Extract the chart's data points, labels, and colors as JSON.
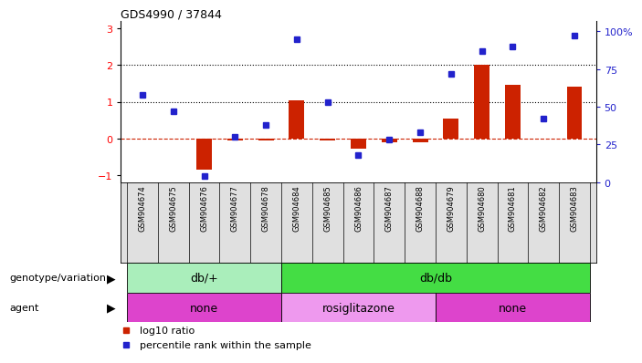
{
  "title": "GDS4990 / 37844",
  "samples": [
    "GSM904674",
    "GSM904675",
    "GSM904676",
    "GSM904677",
    "GSM904678",
    "GSM904684",
    "GSM904685",
    "GSM904686",
    "GSM904687",
    "GSM904688",
    "GSM904679",
    "GSM904680",
    "GSM904681",
    "GSM904682",
    "GSM904683"
  ],
  "log10_ratio": [
    0.0,
    -0.02,
    -0.85,
    -0.07,
    -0.05,
    1.05,
    -0.05,
    -0.28,
    -0.12,
    -0.12,
    0.55,
    2.02,
    1.45,
    -0.02,
    1.42
  ],
  "percentile_rank": [
    58,
    47,
    4,
    30,
    38,
    95,
    53,
    18,
    28,
    33,
    72,
    87,
    90,
    42,
    97
  ],
  "bar_color": "#cc2200",
  "dot_color": "#2222cc",
  "dashed_line_color": "#cc2200",
  "dotted_line_color": "#000000",
  "ylim_left": [
    -1.2,
    3.2
  ],
  "ylim_right": [
    0,
    106.67
  ],
  "yticks_left": [
    -1,
    0,
    1,
    2,
    3
  ],
  "yticks_right": [
    0,
    25,
    50,
    75,
    100
  ],
  "ytick_labels_right": [
    "0",
    "25",
    "50",
    "75",
    "100%"
  ],
  "genotype_groups": [
    {
      "label": "db/+",
      "start": 0,
      "end": 5,
      "color": "#aaeebb"
    },
    {
      "label": "db/db",
      "start": 5,
      "end": 15,
      "color": "#44dd44"
    }
  ],
  "agent_groups": [
    {
      "label": "none",
      "start": 0,
      "end": 5,
      "color": "#dd44cc"
    },
    {
      "label": "rosiglitazone",
      "start": 5,
      "end": 10,
      "color": "#ee99ee"
    },
    {
      "label": "none",
      "start": 10,
      "end": 15,
      "color": "#dd44cc"
    }
  ],
  "legend_items": [
    {
      "color": "#cc2200",
      "label": "log10 ratio"
    },
    {
      "color": "#2222cc",
      "label": "percentile rank within the sample"
    }
  ],
  "background_color": "#ffffff",
  "label_genotype": "genotype/variation",
  "label_agent": "agent"
}
